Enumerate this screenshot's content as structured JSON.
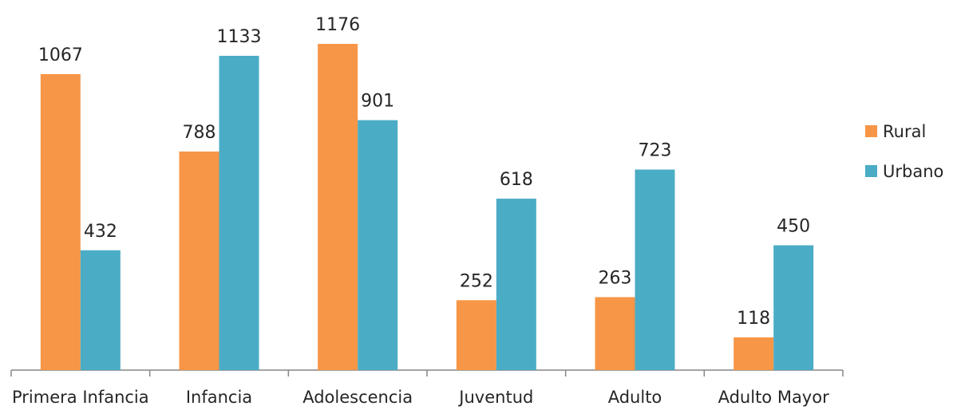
{
  "chart_data": {
    "type": "bar",
    "categories": [
      "Primera Infancia",
      "Infancia",
      "Adolescencia",
      "Juventud",
      "Adulto",
      "Adulto Mayor"
    ],
    "series": [
      {
        "name": "Rural",
        "values": [
          1067,
          788,
          1176,
          252,
          263,
          118
        ],
        "color": "#F79646"
      },
      {
        "name": "Urbano",
        "values": [
          432,
          1133,
          901,
          618,
          723,
          450
        ],
        "color": "#4BACC6"
      }
    ],
    "title": "",
    "xlabel": "",
    "ylabel": "",
    "ylim": [
      0,
      1230
    ],
    "grid": false,
    "data_labels": true,
    "legend_position": "right"
  }
}
